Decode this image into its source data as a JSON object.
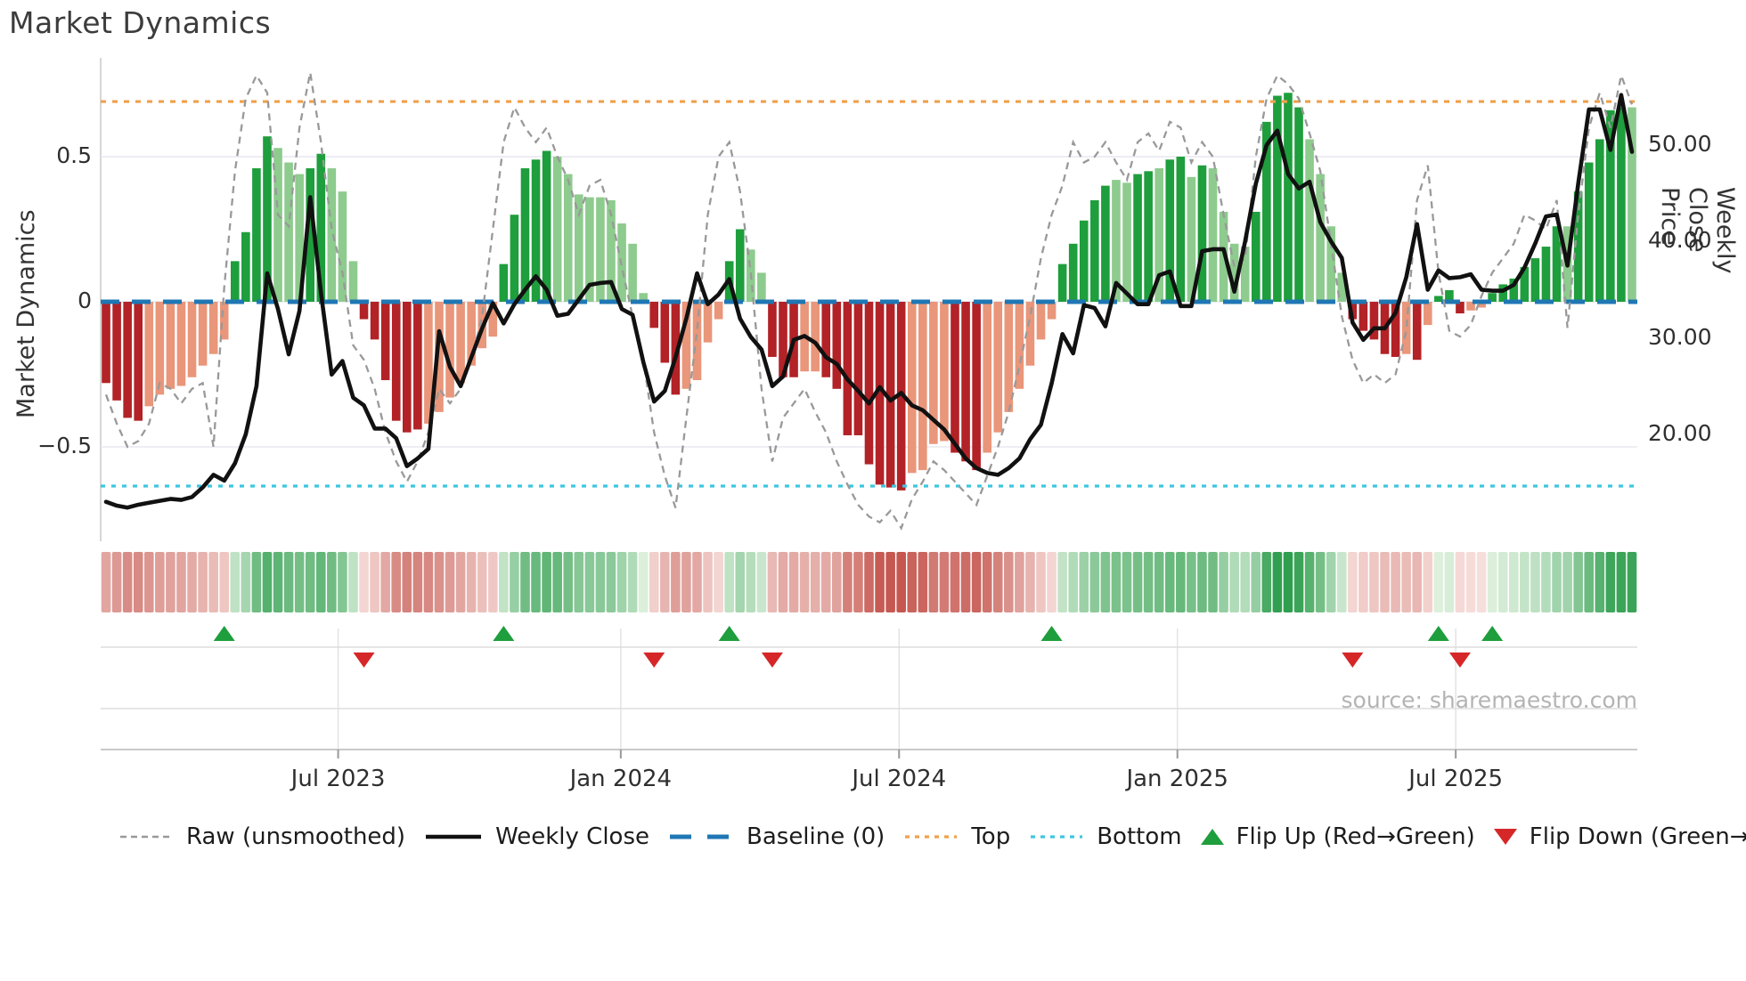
{
  "title": "Market Dynamics",
  "source": "source: sharemaestro.com",
  "axes": {
    "left": {
      "label": "Market Dynamics",
      "ticks": [
        {
          "value": 0.5,
          "label": "0.5"
        },
        {
          "value": 0,
          "label": "0"
        },
        {
          "value": -0.5,
          "label": "−0.5"
        }
      ]
    },
    "right": {
      "label": "Weekly Close Price",
      "ticks": [
        {
          "value": 50,
          "label": "50.00"
        },
        {
          "value": 40,
          "label": "40.00"
        },
        {
          "value": 30,
          "label": "30.00"
        },
        {
          "value": 20,
          "label": "20.00"
        }
      ]
    },
    "x": {
      "ticks": [
        {
          "week": 21.6,
          "label": "Jul 2023"
        },
        {
          "week": 47.9,
          "label": "Jan 2024"
        },
        {
          "week": 73.8,
          "label": "Jul 2024"
        },
        {
          "week": 99.7,
          "label": "Jan 2025"
        },
        {
          "week": 125.6,
          "label": "Jul 2025"
        }
      ]
    }
  },
  "legend": [
    {
      "id": "raw",
      "label": "Raw (unsmoothed)",
      "type": "dashed-line",
      "color": "#999999"
    },
    {
      "id": "weekly",
      "label": "Weekly Close",
      "type": "solid-line",
      "color": "#111111"
    },
    {
      "id": "baseline",
      "label": "Baseline (0)",
      "type": "long-dash-line",
      "color": "#1f77b4"
    },
    {
      "id": "top",
      "label": "Top",
      "type": "dotted-line",
      "color": "#f0a04b"
    },
    {
      "id": "bottom",
      "label": "Bottom",
      "type": "dotted-line",
      "color": "#3ec6e0"
    },
    {
      "id": "flip-up",
      "label": "Flip Up (Red→Green)",
      "type": "triangle-up",
      "color": "#1e9e3c"
    },
    {
      "id": "flip-down",
      "label": "Flip Down (Green→Red)",
      "type": "triangle-down",
      "color": "#d62728"
    }
  ],
  "colors": {
    "bar_pos_strong": "#1e9e3c",
    "bar_pos_weak": "#8ecb8e",
    "bar_neg_strong": "#b22226",
    "bar_neg_weak": "#e9967a",
    "baseline": "#1f77b4",
    "top_line": "#f0a04b",
    "bottom_line": "#3ec6e0",
    "raw_line": "#999999",
    "price_line": "#111111",
    "grid": "#e7e9f0",
    "panel_grid": "#dddddd",
    "spine": "#c9c9c9",
    "marker_up": "#1e9e3c",
    "marker_down": "#d62728",
    "heat_pos_lo": [
      226,
      242,
      224
    ],
    "heat_pos_hi": [
      47,
      158,
      79
    ],
    "heat_neg_lo": [
      248,
      226,
      223
    ],
    "heat_neg_hi": [
      191,
      72,
      64
    ]
  },
  "chart_data": {
    "type": "combo: weekly oscillator bars + intensity heatmap strip + price line + raw dashed line + flip markers",
    "weeks": 143,
    "x_span": "late Jan 2023 → late Oct 2025 (weekly)",
    "osc_ticks": [
      0.5,
      0,
      -0.5
    ],
    "baseline": 0,
    "top_threshold": 0.69,
    "bottom_threshold": -0.635,
    "price_ticks": [
      50,
      40,
      30,
      20
    ],
    "oscillator": [
      -0.28,
      -0.34,
      -0.4,
      -0.41,
      -0.36,
      -0.32,
      -0.3,
      -0.29,
      -0.26,
      -0.22,
      -0.18,
      -0.13,
      0.14,
      0.24,
      0.46,
      0.57,
      0.53,
      0.48,
      0.44,
      0.46,
      0.51,
      0.46,
      0.38,
      0.14,
      -0.06,
      -0.13,
      -0.27,
      -0.41,
      -0.45,
      -0.44,
      -0.42,
      -0.38,
      -0.33,
      -0.28,
      -0.22,
      -0.16,
      -0.12,
      0.13,
      0.3,
      0.46,
      0.49,
      0.52,
      0.5,
      0.44,
      0.37,
      0.36,
      0.36,
      0.35,
      0.27,
      0.2,
      0.03,
      -0.09,
      -0.21,
      -0.32,
      -0.3,
      -0.27,
      -0.14,
      -0.06,
      0.14,
      0.25,
      0.18,
      0.1,
      -0.19,
      -0.26,
      -0.26,
      -0.24,
      -0.24,
      -0.26,
      -0.3,
      -0.46,
      -0.46,
      -0.56,
      -0.63,
      -0.64,
      -0.65,
      -0.59,
      -0.58,
      -0.49,
      -0.48,
      -0.52,
      -0.55,
      -0.58,
      -0.52,
      -0.45,
      -0.38,
      -0.3,
      -0.22,
      -0.13,
      -0.06,
      0.13,
      0.2,
      0.28,
      0.35,
      0.4,
      0.42,
      0.41,
      0.44,
      0.45,
      0.46,
      0.49,
      0.5,
      0.43,
      0.47,
      0.46,
      0.31,
      0.2,
      0.19,
      0.31,
      0.62,
      0.71,
      0.72,
      0.67,
      0.56,
      0.44,
      0.26,
      0.1,
      -0.06,
      -0.1,
      -0.13,
      -0.18,
      -0.19,
      -0.18,
      -0.2,
      -0.08,
      0.02,
      0.04,
      -0.04,
      -0.03,
      -0.02,
      0.03,
      0.06,
      0.08,
      0.12,
      0.15,
      0.19,
      0.26,
      0.26,
      0.38,
      0.48,
      0.56,
      0.66,
      0.67,
      0.67
    ],
    "shade": "ddddllllllllddddlllddlllddddddllllllldddddllllllllldddllllddlldddllddddddddlllldddllllllldddddllddlddldlllldddddlllldddddldldddlldddddddldddddl",
    "raw": [
      -0.32,
      -0.42,
      -0.5,
      -0.48,
      -0.42,
      -0.28,
      -0.3,
      -0.35,
      -0.3,
      -0.28,
      -0.5,
      0.05,
      0.45,
      0.7,
      0.78,
      0.72,
      0.3,
      0.26,
      0.6,
      0.79,
      0.55,
      0.25,
      0.1,
      -0.15,
      -0.2,
      -0.3,
      -0.45,
      -0.55,
      -0.62,
      -0.55,
      -0.45,
      -0.3,
      -0.35,
      -0.3,
      -0.2,
      -0.05,
      0.25,
      0.55,
      0.67,
      0.6,
      0.55,
      0.6,
      0.5,
      0.42,
      0.3,
      0.4,
      0.42,
      0.3,
      0.12,
      -0.05,
      -0.2,
      -0.45,
      -0.6,
      -0.71,
      -0.4,
      -0.1,
      0.3,
      0.5,
      0.55,
      0.38,
      0.1,
      -0.3,
      -0.55,
      -0.4,
      -0.35,
      -0.3,
      -0.38,
      -0.45,
      -0.55,
      -0.63,
      -0.7,
      -0.74,
      -0.76,
      -0.72,
      -0.78,
      -0.68,
      -0.62,
      -0.55,
      -0.58,
      -0.62,
      -0.66,
      -0.7,
      -0.6,
      -0.5,
      -0.38,
      -0.22,
      -0.05,
      0.15,
      0.3,
      0.4,
      0.55,
      0.48,
      0.5,
      0.55,
      0.48,
      0.42,
      0.55,
      0.58,
      0.52,
      0.62,
      0.6,
      0.48,
      0.55,
      0.5,
      0.3,
      0.12,
      0.15,
      0.5,
      0.7,
      0.78,
      0.75,
      0.7,
      0.58,
      0.45,
      0.2,
      -0.05,
      -0.2,
      -0.28,
      -0.25,
      -0.28,
      -0.25,
      -0.1,
      0.35,
      0.47,
      0.1,
      -0.1,
      -0.12,
      -0.08,
      0.02,
      0.1,
      0.15,
      0.2,
      0.3,
      0.28,
      0.25,
      0.35,
      -0.09,
      0.3,
      0.6,
      0.72,
      0.6,
      0.78,
      0.68
    ],
    "weekly_close": [
      13.0,
      12.6,
      12.4,
      12.7,
      12.9,
      13.1,
      13.3,
      13.2,
      13.5,
      14.5,
      15.8,
      15.2,
      17.0,
      20.0,
      25.0,
      36.7,
      33.0,
      28.3,
      32.8,
      44.6,
      34.7,
      26.2,
      27.6,
      23.8,
      23.0,
      20.6,
      20.6,
      19.6,
      16.7,
      17.5,
      18.5,
      30.7,
      27.0,
      25.0,
      28.0,
      31.0,
      33.6,
      31.5,
      33.5,
      35.0,
      36.4,
      35.0,
      32.3,
      32.5,
      34.0,
      35.5,
      35.7,
      35.8,
      33.0,
      32.4,
      27.5,
      23.4,
      24.5,
      28.0,
      32.0,
      36.7,
      33.5,
      34.5,
      36.1,
      32.0,
      30.1,
      28.8,
      25.0,
      26.0,
      29.8,
      30.2,
      29.5,
      28.0,
      27.3,
      25.7,
      24.5,
      23.2,
      24.9,
      23.5,
      24.3,
      23.0,
      22.5,
      21.5,
      20.5,
      19.0,
      17.5,
      16.5,
      16.0,
      15.8,
      16.5,
      17.5,
      19.5,
      21.0,
      25.3,
      30.4,
      28.4,
      33.4,
      33.1,
      31.2,
      35.7,
      34.6,
      33.5,
      33.5,
      36.5,
      36.9,
      33.3,
      33.3,
      39.0,
      39.2,
      39.2,
      34.8,
      40.0,
      46.0,
      50.0,
      51.5,
      47.0,
      45.5,
      46.2,
      42.0,
      40.0,
      38.3,
      31.6,
      29.8,
      31.0,
      31.0,
      32.6,
      36.3,
      41.8,
      35.0,
      37.0,
      36.2,
      36.3,
      36.6,
      35.0,
      34.9,
      34.9,
      35.5,
      37.3,
      39.8,
      42.6,
      42.8,
      37.5,
      46.0,
      53.7,
      53.7,
      49.5,
      55.2,
      49.3
    ],
    "flip_up_weeks": [
      11,
      37,
      58,
      88,
      124,
      129
    ],
    "flip_down_weeks": [
      24,
      51,
      62,
      116,
      126
    ]
  }
}
